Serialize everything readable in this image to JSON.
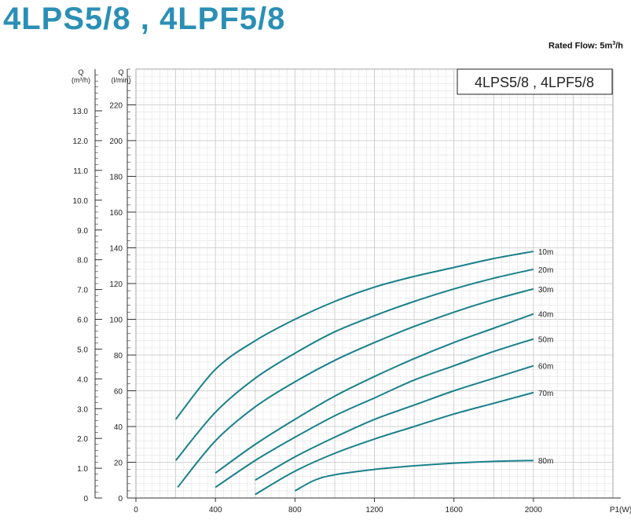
{
  "title": "4LPS5/8 , 4LPF5/8",
  "rated_flow": {
    "label": "Rated Flow: 5m",
    "sup": "3",
    "unit": "/h"
  },
  "colors": {
    "title": "#2b8fb5",
    "curve": "#19808a",
    "grid": "#c8c8c8",
    "axis": "#333333"
  },
  "chart_data": {
    "type": "line",
    "title": "4LPS5/8 , 4LPF5/8",
    "xlabel": "P1(W)",
    "ylabel": "Q (l/min)",
    "y2label": "Q (m³/h)",
    "xlim": [
      0,
      2400
    ],
    "ylim": [
      0,
      240
    ],
    "x_ticks": [
      "0",
      "400",
      "800",
      "1200",
      "1600",
      "2000"
    ],
    "y_ticks": [
      "0",
      "20",
      "40",
      "60",
      "80",
      "100",
      "120",
      "140",
      "160",
      "180",
      "200",
      "220"
    ],
    "y_axis_outer": {
      "label_top": "Q",
      "label_bottom": "(m³/h)",
      "ticks": [
        "0",
        "1.0",
        "2.0",
        "3.0",
        "4.0",
        "5.0",
        "6.0",
        "7.0",
        "8.0",
        "9.0",
        "10.0",
        "11.0",
        "12.0",
        "13.0"
      ]
    },
    "y_axis_inner": {
      "label_top": "Q",
      "label_bottom": "(l/min)"
    },
    "grid": true,
    "legend_box": "top-right",
    "series": [
      {
        "name": "10m",
        "x": [
          200,
          400,
          600,
          800,
          1000,
          1200,
          1400,
          1600,
          1800,
          2000
        ],
        "values": [
          44,
          72,
          88,
          100,
          110,
          118,
          124,
          129,
          134,
          138
        ]
      },
      {
        "name": "20m",
        "x": [
          200,
          400,
          600,
          800,
          1000,
          1200,
          1400,
          1600,
          1800,
          2000
        ],
        "values": [
          21,
          48,
          67,
          81,
          93,
          102,
          110,
          117,
          123,
          128
        ]
      },
      {
        "name": "30m",
        "x": [
          210,
          400,
          600,
          800,
          1000,
          1200,
          1400,
          1600,
          1800,
          2000
        ],
        "values": [
          6,
          32,
          51,
          65,
          77,
          87,
          96,
          104,
          111,
          117
        ]
      },
      {
        "name": "40m",
        "x": [
          400,
          600,
          800,
          1000,
          1200,
          1400,
          1600,
          1800,
          2000
        ],
        "values": [
          14,
          30,
          44,
          57,
          68,
          78,
          87,
          95,
          103
        ]
      },
      {
        "name": "50m",
        "x": [
          400,
          600,
          800,
          1000,
          1200,
          1400,
          1600,
          1800,
          2000
        ],
        "values": [
          6,
          21,
          34,
          46,
          56,
          66,
          74,
          82,
          89
        ]
      },
      {
        "name": "60m",
        "x": [
          600,
          800,
          1000,
          1200,
          1400,
          1600,
          1800,
          2000
        ],
        "values": [
          10,
          23,
          34,
          44,
          52,
          60,
          67,
          74
        ]
      },
      {
        "name": "70m",
        "x": [
          600,
          800,
          1000,
          1200,
          1400,
          1600,
          1800,
          2000
        ],
        "values": [
          2,
          15,
          25,
          33,
          40,
          47,
          53,
          59
        ]
      },
      {
        "name": "80m",
        "x": [
          800,
          900,
          1000,
          1200,
          1400,
          1600,
          1800,
          2000
        ],
        "values": [
          4,
          10,
          13,
          16,
          18,
          19.5,
          20.5,
          21
        ]
      }
    ]
  }
}
